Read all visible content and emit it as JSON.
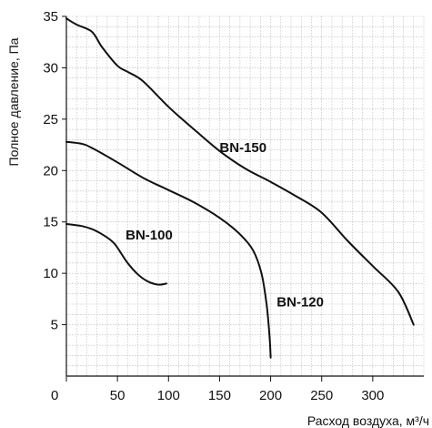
{
  "chart_data": {
    "type": "line",
    "title": "",
    "xlabel": "Расход воздуха, м³/ч",
    "ylabel": "Полное давление, Па",
    "xlim": [
      0,
      350
    ],
    "ylim": [
      0,
      35
    ],
    "grid": true,
    "x_ticks": [
      {
        "value": 0,
        "label": "0"
      },
      {
        "value": 50,
        "label": "50"
      },
      {
        "value": 100,
        "label": "100"
      },
      {
        "value": 150,
        "label": "150"
      },
      {
        "value": 200,
        "label": "200"
      },
      {
        "value": 250,
        "label": "250"
      },
      {
        "value": 300,
        "label": "300"
      }
    ],
    "y_ticks": [
      {
        "value": 5,
        "label": "5"
      },
      {
        "value": 10,
        "label": "10"
      },
      {
        "value": 15,
        "label": "15"
      },
      {
        "value": 20,
        "label": "20"
      },
      {
        "value": 25,
        "label": "25"
      },
      {
        "value": 30,
        "label": "30"
      },
      {
        "value": 35,
        "label": "35"
      }
    ],
    "line_color": "#111111",
    "grid_color": "#b8b8b8",
    "series": [
      {
        "name": "BN-100",
        "label_at": [
          58,
          13.3
        ],
        "points": [
          [
            0,
            14.8
          ],
          [
            15,
            14.6
          ],
          [
            25,
            14.3
          ],
          [
            35,
            13.8
          ],
          [
            45,
            13.1
          ],
          [
            50,
            12.5
          ],
          [
            60,
            11.0
          ],
          [
            70,
            9.9
          ],
          [
            80,
            9.2
          ],
          [
            90,
            8.9
          ],
          [
            98,
            9.0
          ]
        ]
      },
      {
        "name": "BN-120",
        "label_at": [
          206,
          6.8
        ],
        "points": [
          [
            0,
            22.8
          ],
          [
            15,
            22.6
          ],
          [
            25,
            22.2
          ],
          [
            50,
            20.8
          ],
          [
            75,
            19.3
          ],
          [
            100,
            18.1
          ],
          [
            125,
            16.9
          ],
          [
            150,
            15.4
          ],
          [
            170,
            13.8
          ],
          [
            183,
            12.2
          ],
          [
            191,
            10.0
          ],
          [
            196,
            7.0
          ],
          [
            199,
            3.8
          ],
          [
            200,
            1.8
          ]
        ]
      },
      {
        "name": "BN-150",
        "label_at": [
          150,
          21.8
        ],
        "points": [
          [
            0,
            34.8
          ],
          [
            10,
            34.2
          ],
          [
            25,
            33.5
          ],
          [
            35,
            32.0
          ],
          [
            50,
            30.2
          ],
          [
            60,
            29.6
          ],
          [
            75,
            28.7
          ],
          [
            100,
            26.2
          ],
          [
            125,
            24.0
          ],
          [
            150,
            21.9
          ],
          [
            175,
            20.2
          ],
          [
            200,
            18.9
          ],
          [
            225,
            17.5
          ],
          [
            250,
            15.9
          ],
          [
            275,
            13.2
          ],
          [
            300,
            10.7
          ],
          [
            325,
            8.2
          ],
          [
            340,
            5.0
          ]
        ]
      }
    ]
  }
}
